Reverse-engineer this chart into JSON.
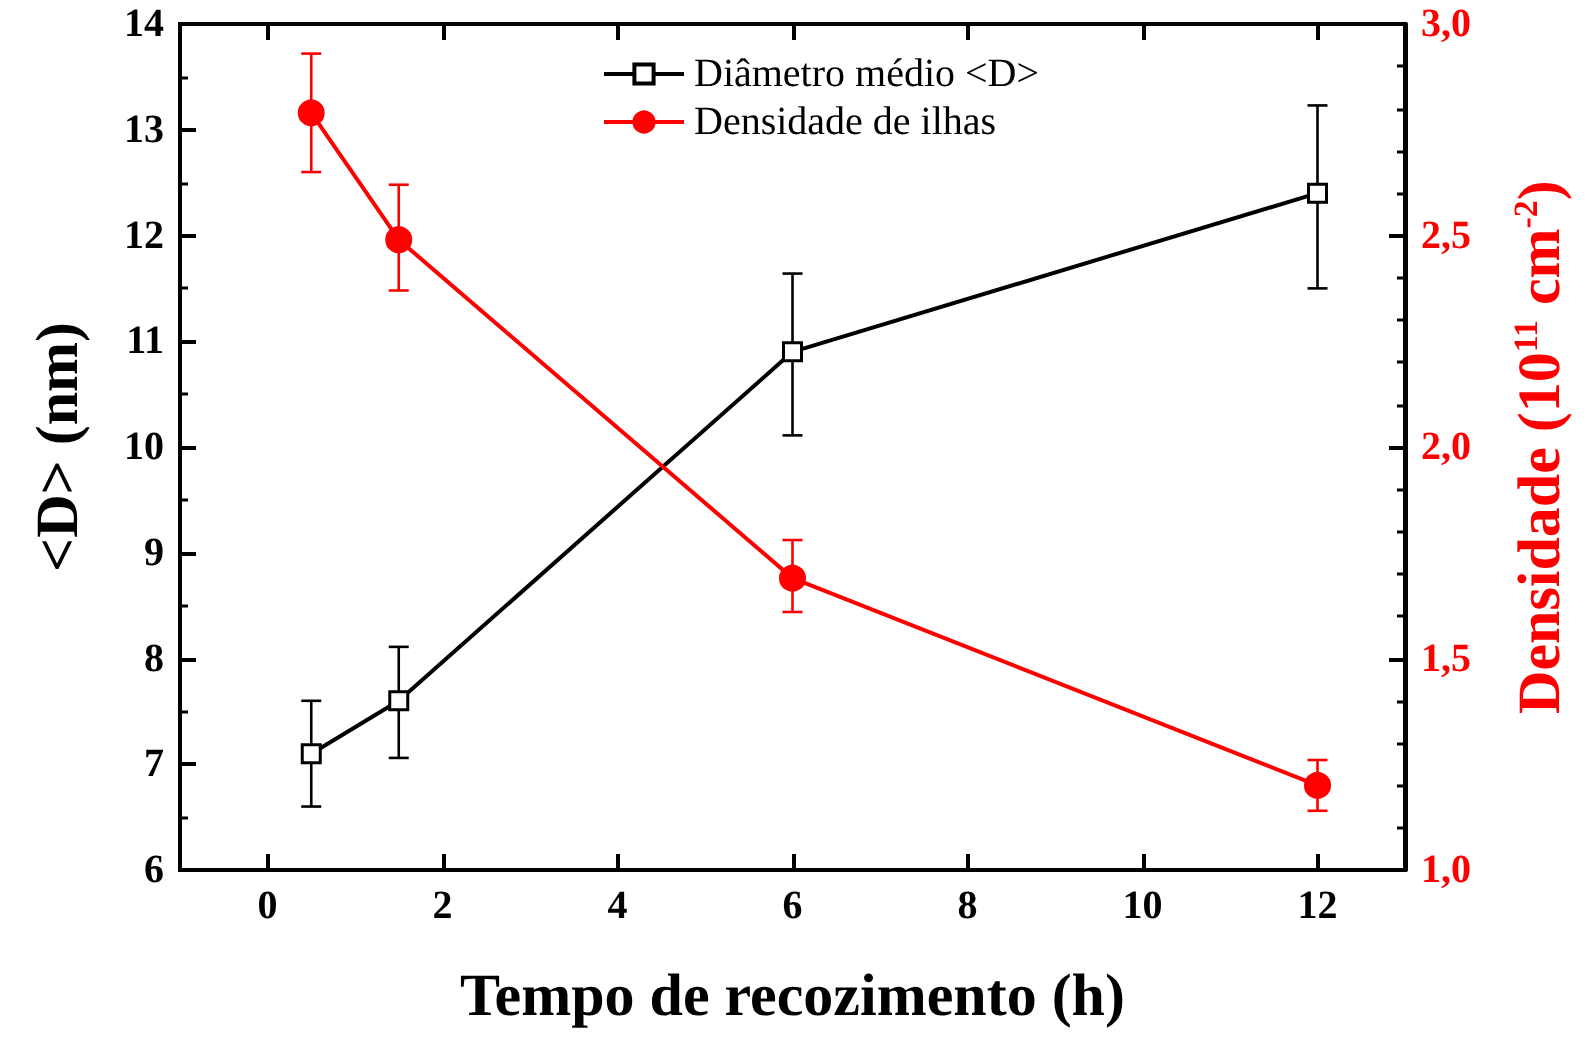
{
  "chart_data": {
    "type": "line",
    "xlabel": "Tempo de recozimento (h)",
    "ylabel": "<D> (nm)",
    "y2label": "Densidade (10$^{11}$ cm$^{-2}$)",
    "x": [
      0.5,
      1.5,
      6,
      12
    ],
    "series": [
      {
        "name": "Diâmetro médio <D>",
        "color": "#000000",
        "marker": "square",
        "values": [
          7.1,
          7.6,
          10.9,
          12.4
        ],
        "errors": [
          0.5,
          [
            7.06,
            8.11
          ],
          [
            10.11,
            11.64
          ],
          [
            11.5,
            13.23
          ]
        ]
      },
      {
        "name": "Densidade de ilhas",
        "color": "#ff0000",
        "marker": "circle",
        "axis": "y2",
        "values": [
          2.79,
          2.49,
          1.69,
          1.2
        ],
        "errors": [
          [
            2.65,
            2.93
          ],
          [
            2.37,
            2.62
          ],
          [
            1.61,
            1.78
          ],
          [
            1.14,
            1.26
          ]
        ]
      }
    ],
    "xlim": [
      -1,
      13
    ],
    "xticks": [
      0,
      2,
      4,
      6,
      8,
      10,
      12
    ],
    "ylim": [
      6,
      14
    ],
    "yticks": [
      6,
      7,
      8,
      9,
      10,
      11,
      12,
      13,
      14
    ],
    "y2lim": [
      1,
      3
    ],
    "y2ticks": [
      {
        "value": 1,
        "label": "1,0"
      },
      {
        "value": 1.5,
        "label": "1,5"
      },
      {
        "value": 2,
        "label": "2,0"
      },
      {
        "value": 2.5,
        "label": "2,5"
      },
      {
        "value": 3,
        "label": "3,0"
      }
    ],
    "legend": "top right",
    "grid": false
  }
}
